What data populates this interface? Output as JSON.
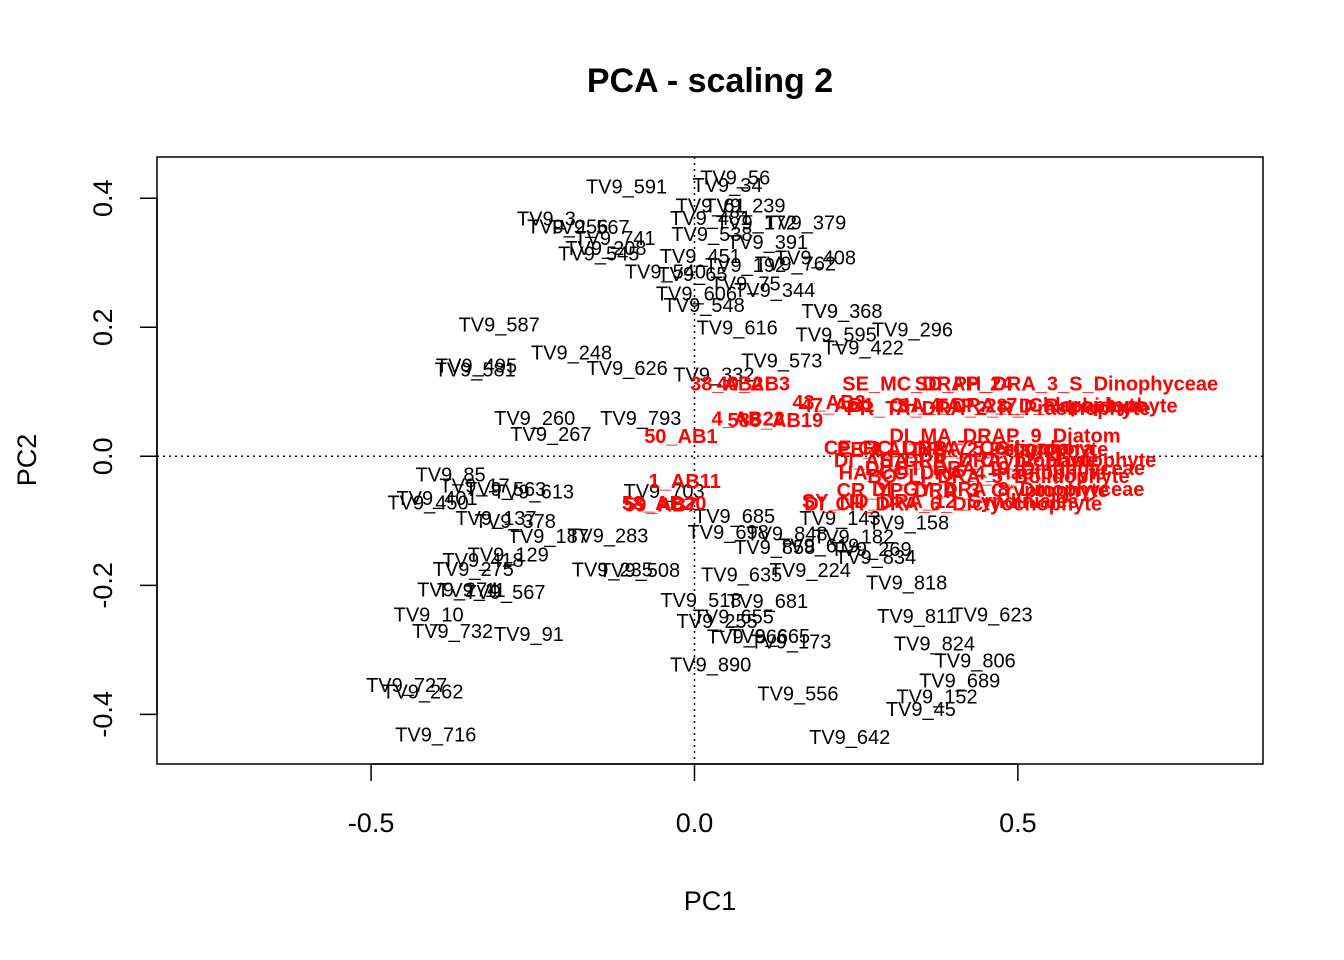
{
  "chart_data": {
    "type": "scatter",
    "title": "PCA - scaling 2",
    "xlabel": "PC1",
    "ylabel": "PC2",
    "xlim": [
      -0.831,
      0.879
    ],
    "ylim": [
      -0.477,
      0.464
    ],
    "xticks": [
      -0.5,
      0.0,
      0.5
    ],
    "xtick_labels": [
      "-0.5",
      "0.0",
      "0.5"
    ],
    "yticks": [
      -0.4,
      -0.2,
      0.0,
      0.2,
      0.4
    ],
    "ytick_labels": [
      "-0.4",
      "-0.2",
      "0.0",
      "0.2",
      "0.4"
    ],
    "reference_lines": {
      "x": 0,
      "y": 0,
      "style": "dotted"
    },
    "grid": false,
    "colors": {
      "sites": "#000000",
      "species": "#ff0000",
      "axes": "#000000"
    },
    "series": [
      {
        "name": "sites",
        "points": [
          {
            "label": "TV9_56",
            "x": 0.063,
            "y": 0.431
          },
          {
            "label": "TV9_34",
            "x": 0.051,
            "y": 0.419
          },
          {
            "label": "TV9_591",
            "x": -0.105,
            "y": 0.417
          },
          {
            "label": "TV9_239",
            "x": 0.078,
            "y": 0.387
          },
          {
            "label": "TV9_61",
            "x": 0.025,
            "y": 0.387
          },
          {
            "label": "TV9_3",
            "x": -0.229,
            "y": 0.367
          },
          {
            "label": "TV9_481",
            "x": 0.025,
            "y": 0.368
          },
          {
            "label": "TV9_379",
            "x": 0.172,
            "y": 0.361
          },
          {
            "label": "TV9_172",
            "x": 0.096,
            "y": 0.361
          },
          {
            "label": "TV9_256",
            "x": -0.196,
            "y": 0.355
          },
          {
            "label": "TV9_567",
            "x": -0.163,
            "y": 0.354
          },
          {
            "label": "TV9_538",
            "x": 0.027,
            "y": 0.343
          },
          {
            "label": "TV9_741",
            "x": -0.123,
            "y": 0.337
          },
          {
            "label": "TV9_391",
            "x": 0.113,
            "y": 0.331
          },
          {
            "label": "TV9_208",
            "x": -0.137,
            "y": 0.321
          },
          {
            "label": "TV9_545",
            "x": -0.148,
            "y": 0.313
          },
          {
            "label": "TV9_451",
            "x": 0.009,
            "y": 0.309
          },
          {
            "label": "TV9_408",
            "x": 0.187,
            "y": 0.307
          },
          {
            "label": "TV9_762",
            "x": 0.156,
            "y": 0.297
          },
          {
            "label": "TV9_540",
            "x": -0.045,
            "y": 0.285
          },
          {
            "label": "TV9_192",
            "x": 0.079,
            "y": 0.295
          },
          {
            "label": "TV9_65",
            "x": -0.003,
            "y": 0.281
          },
          {
            "label": "TV9_75",
            "x": 0.079,
            "y": 0.266
          },
          {
            "label": "TV9_344",
            "x": 0.124,
            "y": 0.256
          },
          {
            "label": "TV9_606",
            "x": 0.003,
            "y": 0.251
          },
          {
            "label": "TV9_548",
            "x": 0.015,
            "y": 0.233
          },
          {
            "label": "TV9_368",
            "x": 0.228,
            "y": 0.224
          },
          {
            "label": "TV9_587",
            "x": -0.302,
            "y": 0.203
          },
          {
            "label": "TV9_616",
            "x": 0.066,
            "y": 0.198
          },
          {
            "label": "TV9_296",
            "x": 0.337,
            "y": 0.195
          },
          {
            "label": "TV9_595",
            "x": 0.219,
            "y": 0.187
          },
          {
            "label": "TV9_422",
            "x": 0.261,
            "y": 0.167
          },
          {
            "label": "TV9_248",
            "x": -0.19,
            "y": 0.159
          },
          {
            "label": "TV9_573",
            "x": 0.135,
            "y": 0.147
          },
          {
            "label": "TV9_495",
            "x": -0.337,
            "y": 0.139
          },
          {
            "label": "TV9_581",
            "x": -0.339,
            "y": 0.133
          },
          {
            "label": "TV9_626",
            "x": -0.104,
            "y": 0.135
          },
          {
            "label": "TV9_332",
            "x": 0.03,
            "y": 0.125
          },
          {
            "label": "TV9_260",
            "x": -0.247,
            "y": 0.058
          },
          {
            "label": "TV9_793",
            "x": -0.083,
            "y": 0.058
          },
          {
            "label": "TV9_267",
            "x": -0.222,
            "y": 0.033
          },
          {
            "label": "TV9_85",
            "x": -0.377,
            "y": -0.03
          },
          {
            "label": "TV9_17",
            "x": -0.34,
            "y": -0.047
          },
          {
            "label": "TV9_563",
            "x": -0.292,
            "y": -0.052
          },
          {
            "label": "TV9_613",
            "x": -0.249,
            "y": -0.056
          },
          {
            "label": "TV9_401",
            "x": -0.398,
            "y": -0.066
          },
          {
            "label": "TV9_450",
            "x": -0.412,
            "y": -0.073
          },
          {
            "label": "TV9_703",
            "x": -0.047,
            "y": -0.055
          },
          {
            "label": "TV9_137",
            "x": -0.307,
            "y": -0.097
          },
          {
            "label": "TV9_378",
            "x": -0.277,
            "y": -0.102
          },
          {
            "label": "TV9_685",
            "x": 0.062,
            "y": -0.094
          },
          {
            "label": "TV9_143",
            "x": 0.225,
            "y": -0.097
          },
          {
            "label": "TV9_158",
            "x": 0.331,
            "y": -0.104
          },
          {
            "label": "TV9_187",
            "x": -0.226,
            "y": -0.125
          },
          {
            "label": "TV9_283",
            "x": -0.134,
            "y": -0.124
          },
          {
            "label": "TV9_698",
            "x": 0.052,
            "y": -0.119
          },
          {
            "label": "TV9_848",
            "x": 0.143,
            "y": -0.121
          },
          {
            "label": "TV9_182",
            "x": 0.246,
            "y": -0.126
          },
          {
            "label": "TV9_858",
            "x": 0.124,
            "y": -0.142
          },
          {
            "label": "TV9_619",
            "x": 0.192,
            "y": -0.14
          },
          {
            "label": "TV9_269",
            "x": 0.273,
            "y": -0.145
          },
          {
            "label": "TV9_129",
            "x": -0.288,
            "y": -0.154
          },
          {
            "label": "TV9_418",
            "x": -0.327,
            "y": -0.162
          },
          {
            "label": "TV9_834",
            "x": 0.28,
            "y": -0.158
          },
          {
            "label": "TV9_275",
            "x": -0.342,
            "y": -0.176
          },
          {
            "label": "TV9_235",
            "x": -0.127,
            "y": -0.177
          },
          {
            "label": "TV9_508",
            "x": -0.085,
            "y": -0.178
          },
          {
            "label": "TV9_224",
            "x": 0.179,
            "y": -0.178
          },
          {
            "label": "TV9_635",
            "x": 0.073,
            "y": -0.185
          },
          {
            "label": "TV9_818",
            "x": 0.328,
            "y": -0.197
          },
          {
            "label": "TV9_274",
            "x": -0.366,
            "y": -0.208
          },
          {
            "label": "TV9_11",
            "x": -0.345,
            "y": -0.209
          },
          {
            "label": "TV9_567",
            "x": -0.293,
            "y": -0.212
          },
          {
            "label": "TV9_518",
            "x": 0.01,
            "y": -0.224
          },
          {
            "label": "TV9_681",
            "x": 0.113,
            "y": -0.226
          },
          {
            "label": "TV9_10",
            "x": -0.411,
            "y": -0.247
          },
          {
            "label": "TV9_811",
            "x": 0.344,
            "y": -0.249
          },
          {
            "label": "TV9_623",
            "x": 0.46,
            "y": -0.247
          },
          {
            "label": "TV9_655",
            "x": 0.06,
            "y": -0.25
          },
          {
            "label": "TV9_255",
            "x": 0.035,
            "y": -0.257
          },
          {
            "label": "TV9_732",
            "x": -0.374,
            "y": -0.272
          },
          {
            "label": "TV9_91",
            "x": -0.256,
            "y": -0.277
          },
          {
            "label": "TV9_866",
            "x": 0.082,
            "y": -0.281
          },
          {
            "label": "TV9_665",
            "x": 0.116,
            "y": -0.28
          },
          {
            "label": "TV9_173",
            "x": 0.149,
            "y": -0.289
          },
          {
            "label": "TV9_824",
            "x": 0.371,
            "y": -0.292
          },
          {
            "label": "TV9_806",
            "x": 0.434,
            "y": -0.318
          },
          {
            "label": "TV9_890",
            "x": 0.025,
            "y": -0.324
          },
          {
            "label": "TV9_689",
            "x": 0.41,
            "y": -0.349
          },
          {
            "label": "TV9_727",
            "x": -0.445,
            "y": -0.356
          },
          {
            "label": "TV9_262",
            "x": -0.42,
            "y": -0.366
          },
          {
            "label": "TV9_556",
            "x": 0.16,
            "y": -0.369
          },
          {
            "label": "TV9_152",
            "x": 0.375,
            "y": -0.374
          },
          {
            "label": "TV9_45",
            "x": 0.35,
            "y": -0.393
          },
          {
            "label": "TV9_716",
            "x": -0.4,
            "y": -0.433
          },
          {
            "label": "TV9_642",
            "x": 0.24,
            "y": -0.437
          }
        ]
      },
      {
        "name": "species",
        "points": [
          {
            "label": "38_AB2",
            "x": 0.05,
            "y": 0.111
          },
          {
            "label": "40_AB3",
            "x": 0.091,
            "y": 0.111
          },
          {
            "label": "4_AB22",
            "x": 0.083,
            "y": 0.057
          },
          {
            "label": "43_AB2",
            "x": 0.208,
            "y": 0.083
          },
          {
            "label": "47_AB1",
            "x": 0.221,
            "y": 0.078
          },
          {
            "label": "588_AB19",
            "x": 0.125,
            "y": 0.055
          },
          {
            "label": "50_AB1",
            "x": -0.021,
            "y": 0.03
          },
          {
            "label": "59_AB7",
            "x": -0.052,
            "y": -0.076
          },
          {
            "label": "58_AB20",
            "x": -0.047,
            "y": -0.074
          },
          {
            "label": "1_AB11",
            "x": -0.015,
            "y": -0.04
          },
          {
            "label": "SE_MC_DRAP_24",
            "x": 0.36,
            "y": 0.111
          },
          {
            "label": "SD_PH_DRA_3_S_Dinophyceae",
            "x": 0.575,
            "y": 0.111
          },
          {
            "label": "CH_4_DRA_7_Chlorophyte",
            "x": 0.5,
            "y": 0.078
          },
          {
            "label": "SA_TAP_28_D_Raphidophyte",
            "x": 0.53,
            "y": 0.077
          },
          {
            "label": "PR_TA_DRA_2_R_Prasinophyte",
            "x": 0.47,
            "y": 0.073
          },
          {
            "label": "DI_MA_DRAP_9_Diatom",
            "x": 0.48,
            "y": 0.031
          },
          {
            "label": "DI_AS_DRA_7_Cryptophyte",
            "x": 0.42,
            "y": -0.007
          },
          {
            "label": "HA_PR_DRA_12_Haptophyte",
            "x": 0.5,
            "y": -0.007
          },
          {
            "label": "CI_LI_DRA_5_Ciliophora",
            "x": 0.435,
            "y": 0.011
          },
          {
            "label": "DI_ET_DRA_19_Dinophyceae",
            "x": 0.48,
            "y": -0.02
          },
          {
            "label": "HA_CO_DRA_4_Haptophyte",
            "x": 0.43,
            "y": -0.027
          },
          {
            "label": "DI_GY_DRA_8_Dinophyceae",
            "x": 0.485,
            "y": -0.052
          },
          {
            "label": "CR_YP_DRA_3_Cryptophyte",
            "x": 0.43,
            "y": -0.054
          },
          {
            "label": "SY_ND_DRA_12_Syndiniales",
            "x": 0.38,
            "y": -0.071
          },
          {
            "label": "DI_CH_DRA_6_Dictyochophyte",
            "x": 0.4,
            "y": -0.075
          },
          {
            "label": "PE_LA_DRA_2_Pelagophyte",
            "x": 0.43,
            "y": 0.01
          },
          {
            "label": "BO_LI_DRA_5_Bolidophyte",
            "x": 0.47,
            "y": -0.032
          },
          {
            "label": "CE_RC_DRA_7_Cercozoa",
            "x": 0.39,
            "y": 0.012
          }
        ]
      }
    ]
  }
}
